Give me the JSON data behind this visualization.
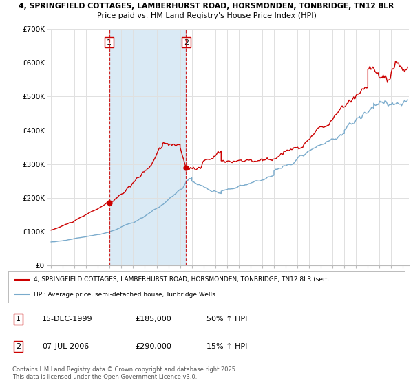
{
  "title_line1": "4, SPRINGFIELD COTTAGES, LAMBERHURST ROAD, HORSMONDEN, TONBRIDGE, TN12 8LR",
  "title_line2": "Price paid vs. HM Land Registry's House Price Index (HPI)",
  "xlim": [
    1994.7,
    2025.5
  ],
  "ylim": [
    0,
    700000
  ],
  "yticks": [
    0,
    100000,
    200000,
    300000,
    400000,
    500000,
    600000,
    700000
  ],
  "ytick_labels": [
    "£0",
    "£100K",
    "£200K",
    "£300K",
    "£400K",
    "£500K",
    "£600K",
    "£700K"
  ],
  "sale1_x": 1999.96,
  "sale1_y": 185000,
  "sale1_label": "1",
  "sale1_date": "15-DEC-1999",
  "sale1_price": "£185,000",
  "sale1_hpi": "50% ↑ HPI",
  "sale2_x": 2006.52,
  "sale2_y": 290000,
  "sale2_label": "2",
  "sale2_date": "07-JUL-2006",
  "sale2_price": "£290,000",
  "sale2_hpi": "15% ↑ HPI",
  "shaded_x1": 1999.96,
  "shaded_x2": 2006.52,
  "red_line_color": "#cc0000",
  "blue_line_color": "#7aabcc",
  "shade_color": "#daeaf5",
  "grid_color": "#e0e0e0",
  "legend_label_red": "4, SPRINGFIELD COTTAGES, LAMBERHURST ROAD, HORSMONDEN, TONBRIDGE, TN12 8LR (sem",
  "legend_label_blue": "HPI: Average price, semi-detached house, Tunbridge Wells",
  "footer_text": "Contains HM Land Registry data © Crown copyright and database right 2025.\nThis data is licensed under the Open Government Licence v3.0.",
  "background_color": "#ffffff"
}
